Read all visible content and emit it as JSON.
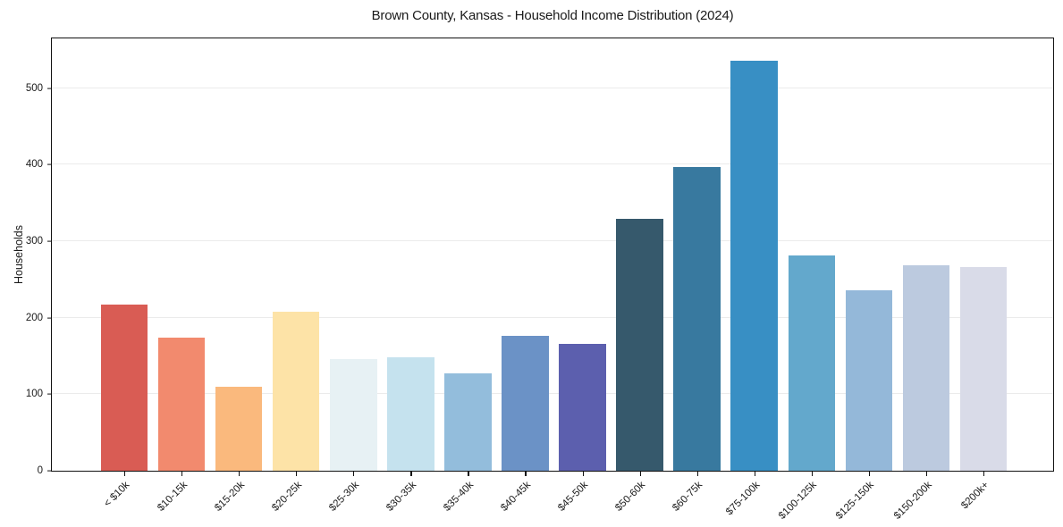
{
  "chart_data": {
    "type": "bar",
    "title": "Brown County, Kansas - Household Income Distribution (2024)",
    "xlabel": "",
    "ylabel": "Households",
    "categories": [
      "< $10k",
      "$10-15k",
      "$15-20k",
      "$20-25k",
      "$25-30k",
      "$30-35k",
      "$35-40k",
      "$40-45k",
      "$45-50k",
      "$50-60k",
      "$60-75k",
      "$75-100k",
      "$100-125k",
      "$125-150k",
      "$150-200k",
      "$200k+"
    ],
    "values": [
      217,
      174,
      110,
      208,
      146,
      148,
      127,
      176,
      166,
      329,
      397,
      536,
      281,
      236,
      269,
      266
    ],
    "bar_colors": [
      "#d95c54",
      "#f28a6e",
      "#fab97d",
      "#fde3a7",
      "#e7f1f4",
      "#c5e2ee",
      "#93bddc",
      "#6b92c6",
      "#5c5fae",
      "#36596c",
      "#38799f",
      "#388fc4",
      "#63a8cc",
      "#94b8d9",
      "#bccadf",
      "#d9dbe8"
    ],
    "yticks": [
      0,
      100,
      200,
      300,
      400,
      500
    ],
    "ylim": [
      0,
      565
    ],
    "grid": "horizontal",
    "gridline_color": "#ebebeb",
    "legend": "none",
    "plot_border_color": "#111111",
    "background_color": "#ffffff"
  }
}
